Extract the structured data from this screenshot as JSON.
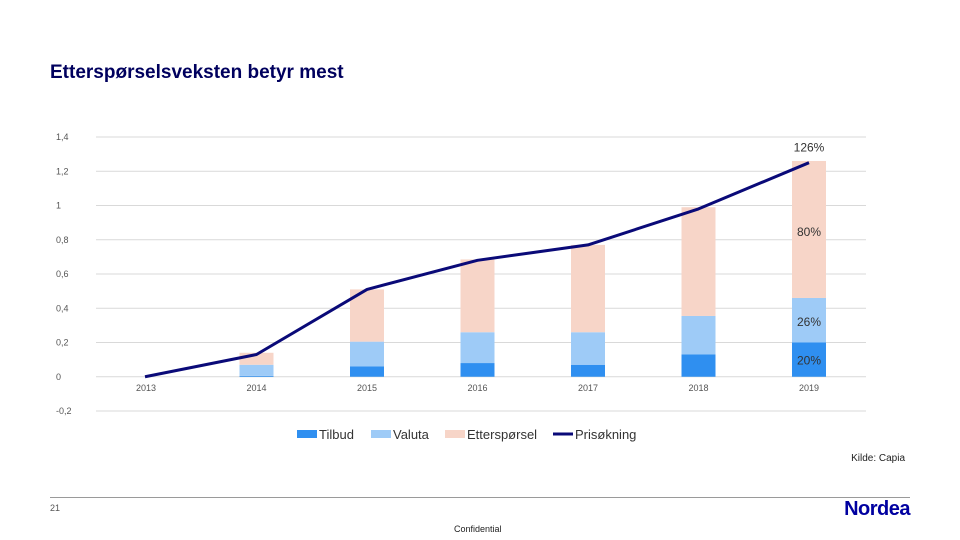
{
  "page": {
    "title": "Etterspørselsveksten betyr mest",
    "source": "Kilde: Capia",
    "page_number": "21",
    "logo": "Nordea",
    "footer": "Confidential"
  },
  "colors": {
    "tilbud": "#2f8ff0",
    "valuta": "#9ecbf7",
    "ettersporsel": "#f7d5c8",
    "prisokning": "#0a0a78",
    "grid": "#d9d9d9"
  },
  "chart_data": {
    "type": "bar",
    "stacked": true,
    "title": "",
    "xlabel": "",
    "ylabel": "",
    "categories": [
      "2013",
      "2014",
      "2015",
      "2016",
      "2017",
      "2018",
      "2019"
    ],
    "ylim": [
      -0.2,
      1.4
    ],
    "yticks": [
      -0.2,
      0,
      0.2,
      0.4,
      0.6,
      0.8,
      1,
      1.2,
      1.4
    ],
    "ytick_labels": [
      "-0,2",
      "0",
      "0,2",
      "0,4",
      "0,6",
      "0,8",
      "1",
      "1,2",
      "1,4"
    ],
    "grid": true,
    "legend_position": "bottom",
    "series": [
      {
        "name": "Tilbud",
        "kind": "bar",
        "values": [
          0,
          0.005,
          0.06,
          0.08,
          0.07,
          0.13,
          0.2
        ]
      },
      {
        "name": "Valuta",
        "kind": "bar",
        "values": [
          0,
          0.065,
          0.145,
          0.18,
          0.19,
          0.225,
          0.26
        ]
      },
      {
        "name": "Etterspørsel",
        "kind": "bar",
        "values": [
          0,
          0.07,
          0.305,
          0.425,
          0.51,
          0.635,
          0.8
        ]
      },
      {
        "name": "Prisøkning",
        "kind": "line",
        "values": [
          0,
          0.13,
          0.51,
          0.68,
          0.77,
          0.98,
          1.25
        ]
      }
    ],
    "annotations": [
      {
        "text": "126%",
        "category": "2019",
        "y": 1.34
      },
      {
        "text": "80%",
        "category": "2019",
        "y": 0.845
      },
      {
        "text": "26%",
        "category": "2019",
        "y": 0.32
      },
      {
        "text": "20%",
        "category": "2019",
        "y": 0.095
      }
    ]
  }
}
